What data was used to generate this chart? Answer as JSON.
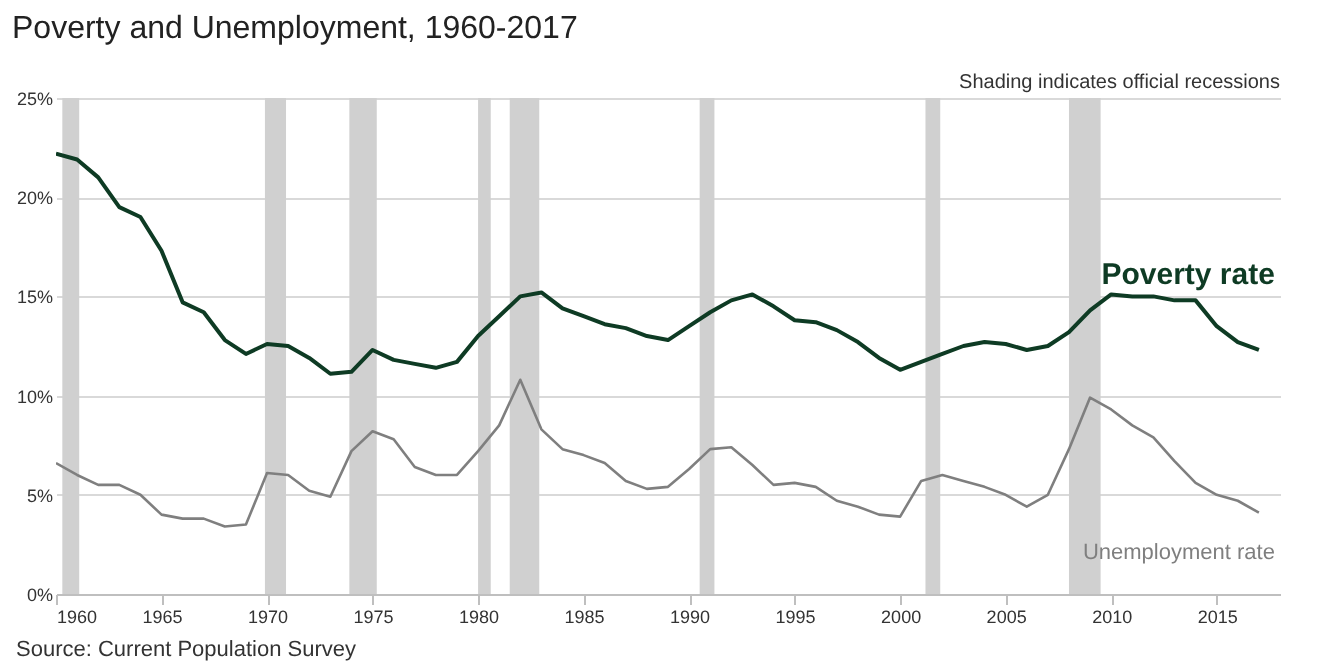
{
  "chart_data": {
    "type": "line",
    "title": "Poverty and Unemployment, 1960-2017",
    "annotations": [
      "Shading indicates official recessions",
      "Source: Current Population Survey"
    ],
    "x": [
      1960,
      1961,
      1962,
      1963,
      1964,
      1965,
      1966,
      1967,
      1968,
      1969,
      1970,
      1971,
      1972,
      1973,
      1974,
      1975,
      1976,
      1977,
      1978,
      1979,
      1980,
      1981,
      1982,
      1983,
      1984,
      1985,
      1986,
      1987,
      1988,
      1989,
      1990,
      1991,
      1992,
      1993,
      1994,
      1995,
      1996,
      1997,
      1998,
      1999,
      2000,
      2001,
      2002,
      2003,
      2004,
      2005,
      2006,
      2007,
      2008,
      2009,
      2010,
      2011,
      2012,
      2013,
      2014,
      2015,
      2016,
      2017
    ],
    "series": [
      {
        "name": "Poverty rate",
        "color": "#0e3b24",
        "values": [
          22.2,
          21.9,
          21.0,
          19.5,
          19.0,
          17.3,
          14.7,
          14.2,
          12.8,
          12.1,
          12.6,
          12.5,
          11.9,
          11.1,
          11.2,
          12.3,
          11.8,
          11.6,
          11.4,
          11.7,
          13.0,
          14.0,
          15.0,
          15.2,
          14.4,
          14.0,
          13.6,
          13.4,
          13.0,
          12.8,
          13.5,
          14.2,
          14.8,
          15.1,
          14.5,
          13.8,
          13.7,
          13.3,
          12.7,
          11.9,
          11.3,
          11.7,
          12.1,
          12.5,
          12.7,
          12.6,
          12.3,
          12.5,
          13.2,
          14.3,
          15.1,
          15.0,
          15.0,
          14.8,
          14.8,
          13.5,
          12.7,
          12.3
        ]
      },
      {
        "name": "Unemployment rate",
        "color": "#7f7f7f",
        "values": [
          6.6,
          6.0,
          5.5,
          5.5,
          5.0,
          4.0,
          3.8,
          3.8,
          3.4,
          3.5,
          6.1,
          6.0,
          5.2,
          4.9,
          7.2,
          8.2,
          7.8,
          6.4,
          6.0,
          6.0,
          7.2,
          8.5,
          10.8,
          8.3,
          7.3,
          7.0,
          6.6,
          5.7,
          5.3,
          5.4,
          6.3,
          7.3,
          7.4,
          6.5,
          5.5,
          5.6,
          5.4,
          4.7,
          4.4,
          4.0,
          3.9,
          5.7,
          6.0,
          5.7,
          5.4,
          5.0,
          4.4,
          5.0,
          7.3,
          9.9,
          9.3,
          8.5,
          7.9,
          6.7,
          5.6,
          5.0,
          4.7,
          4.1
        ]
      }
    ],
    "xlim": [
      1960,
      2018
    ],
    "xticks": [
      1960,
      1965,
      1970,
      1975,
      1980,
      1985,
      1990,
      1995,
      2000,
      2005,
      2010,
      2015
    ],
    "ylim": [
      0,
      25
    ],
    "yticks": [
      {
        "value": 0,
        "label": "0%"
      },
      {
        "value": 5,
        "label": "5%"
      },
      {
        "value": 10,
        "label": "10%"
      },
      {
        "value": 15,
        "label": "15%"
      },
      {
        "value": 20,
        "label": "20%"
      },
      {
        "value": 25,
        "label": "25%"
      }
    ],
    "grid": "y",
    "bands": [
      {
        "axis": "x",
        "from": 1960.3,
        "to": 1961.1,
        "color": "#d0d0d0"
      },
      {
        "axis": "x",
        "from": 1969.9,
        "to": 1970.9,
        "color": "#d0d0d0"
      },
      {
        "axis": "x",
        "from": 1973.9,
        "to": 1975.2,
        "color": "#d0d0d0"
      },
      {
        "axis": "x",
        "from": 1980.0,
        "to": 1980.6,
        "color": "#d0d0d0"
      },
      {
        "axis": "x",
        "from": 1981.5,
        "to": 1982.9,
        "color": "#d0d0d0"
      },
      {
        "axis": "x",
        "from": 1990.5,
        "to": 1991.2,
        "color": "#d0d0d0"
      },
      {
        "axis": "x",
        "from": 2001.2,
        "to": 2001.9,
        "color": "#d0d0d0"
      },
      {
        "axis": "x",
        "from": 2008.0,
        "to": 2009.5,
        "color": "#d0d0d0"
      }
    ]
  }
}
